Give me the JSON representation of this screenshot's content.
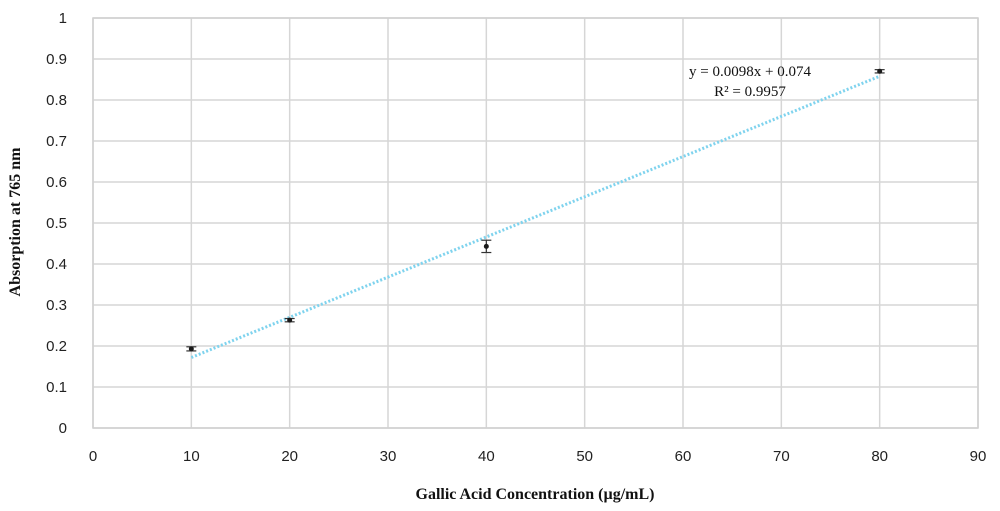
{
  "chart_data": {
    "type": "scatter",
    "title": "",
    "xlabel": "Gallic Acid Concentration (µg/mL)",
    "ylabel": "Absorption at 765 nm",
    "xlim": [
      0,
      90
    ],
    "ylim": [
      0,
      1
    ],
    "x_ticks": [
      "0",
      "10",
      "20",
      "30",
      "40",
      "50",
      "60",
      "70",
      "80",
      "90"
    ],
    "y_ticks": [
      "0",
      "0.1",
      "0.2",
      "0.3",
      "0.4",
      "0.5",
      "0.6",
      "0.7",
      "0.8",
      "0.9",
      "1"
    ],
    "grid": true,
    "series": [
      {
        "x": [
          10,
          20,
          40,
          80
        ],
        "y": [
          0.193,
          0.263,
          0.443,
          0.87
        ],
        "error": [
          0.005,
          0.004,
          0.015,
          0.004
        ],
        "color": "#1a1a1a"
      }
    ],
    "trendline": {
      "type": "linear",
      "slope": 0.0098,
      "intercept": 0.074,
      "x_range": [
        10,
        80
      ],
      "color": "#7fd3ee",
      "equation": "y = 0.0098x + 0.074",
      "r_squared": "R² = 0.9957"
    }
  }
}
